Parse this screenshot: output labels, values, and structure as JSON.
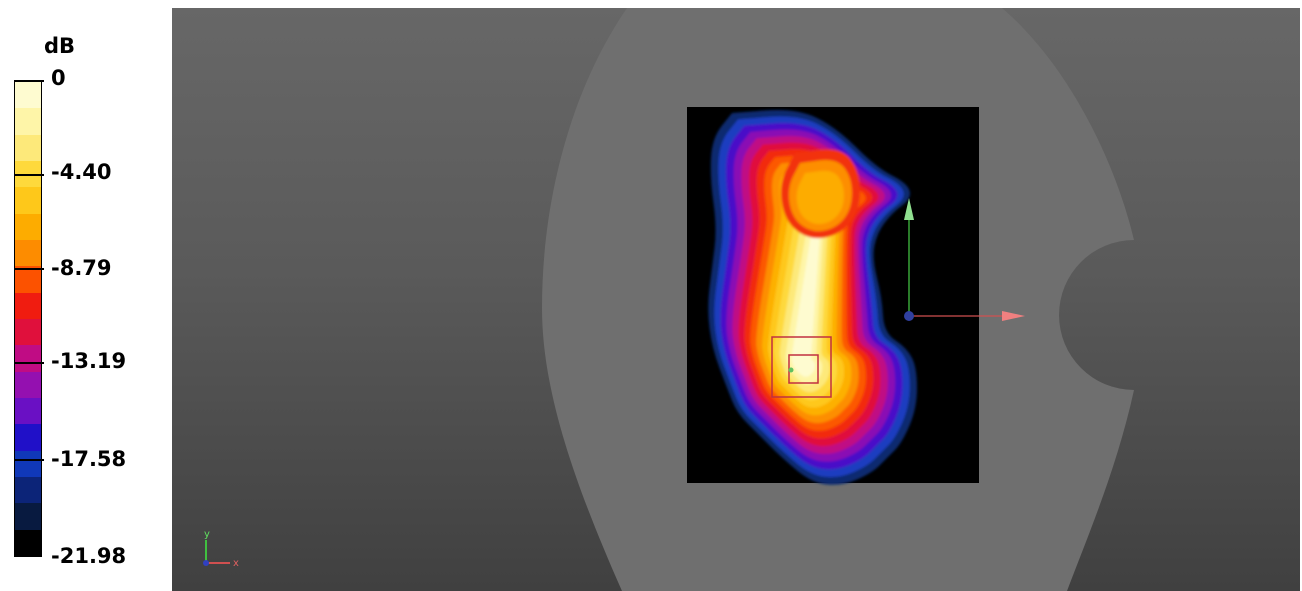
{
  "legend": {
    "unit": "dB",
    "ticks": [
      "0",
      "-4.40",
      "-8.79",
      "-13.19",
      "-17.58",
      "-21.98"
    ],
    "band_colors": [
      "#fefbd0",
      "#fef5a8",
      "#fde97a",
      "#fed93c",
      "#fec81a",
      "#fdac00",
      "#fd8c00",
      "#fc5200",
      "#f01c10",
      "#e0103c",
      "#c00c84",
      "#9410b0",
      "#6a10c4",
      "#2010c8",
      "#1038b8",
      "#0c2478",
      "#081a40",
      "#000000"
    ]
  },
  "viewport": {
    "background": "gray gradient",
    "triad": {
      "y_label": "y",
      "x_label": "x"
    }
  },
  "colors": {
    "phantom": "#6f6f6f",
    "area_scan": "#000000",
    "axis_x": "#d05050",
    "axis_y": "#40c040",
    "zoom_scan_box": "#c03040"
  }
}
